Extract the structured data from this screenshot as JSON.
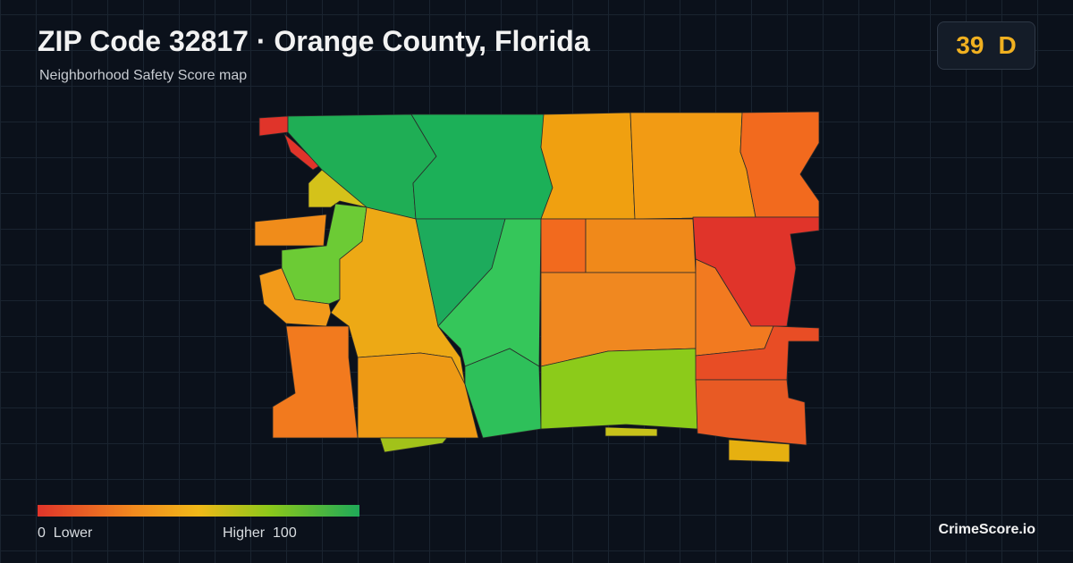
{
  "header": {
    "title": "ZIP Code 32817 · Orange County, Florida",
    "subtitle": "Neighborhood Safety Score map"
  },
  "score": {
    "value": 39,
    "grade": "D"
  },
  "legend": {
    "min": 0,
    "min_label": "Lower",
    "max_label": "Higher",
    "max": 100
  },
  "brand": "CrimeScore.io"
}
